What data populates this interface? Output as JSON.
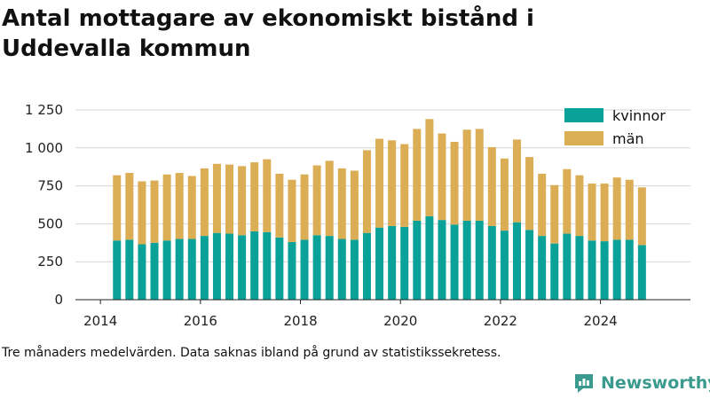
{
  "title": "Antal mottagare av ekonomiskt bistånd i Uddevalla kommun",
  "caption": "Tre månaders medelvärden. Data saknas ibland på grund av statistikssekretess.",
  "brand": "Newsworthy",
  "colors": {
    "kvinnor": "#0aa298",
    "man": "#dbae56",
    "grid": "#d6d6d6",
    "brand": "#3a9a8e"
  },
  "chart_data": {
    "type": "bar",
    "stacked": true,
    "x_axis": {
      "min": 2013.5,
      "max": 2025.8,
      "ticks": [
        2014,
        2016,
        2018,
        2020,
        2022,
        2024
      ]
    },
    "y_axis": {
      "min": 0,
      "max": 1250,
      "ticks": [
        0,
        250,
        500,
        750,
        1000,
        1250
      ],
      "tick_labels": [
        "0",
        "250",
        "500",
        "750",
        "1 000",
        "1 250"
      ]
    },
    "grid": "horizontal",
    "legend_position": "top-right",
    "x": [
      2014.33,
      2014.58,
      2014.83,
      2015.08,
      2015.33,
      2015.58,
      2015.83,
      2016.08,
      2016.33,
      2016.58,
      2016.83,
      2017.08,
      2017.33,
      2017.58,
      2017.83,
      2018.08,
      2018.33,
      2018.58,
      2018.83,
      2019.08,
      2019.33,
      2019.58,
      2019.83,
      2020.08,
      2020.33,
      2020.58,
      2020.83,
      2021.08,
      2021.33,
      2021.58,
      2021.83,
      2022.08,
      2022.33,
      2022.58,
      2022.83,
      2023.08,
      2023.33,
      2023.58,
      2023.83,
      2024.08,
      2024.33,
      2024.58,
      2024.83
    ],
    "series": [
      {
        "name": "kvinnor",
        "values": [
          390,
          395,
          365,
          375,
          390,
          400,
          400,
          420,
          440,
          435,
          425,
          450,
          445,
          410,
          380,
          395,
          425,
          420,
          400,
          395,
          440,
          475,
          485,
          480,
          520,
          550,
          525,
          495,
          520,
          520,
          485,
          455,
          510,
          460,
          420,
          370,
          435,
          420,
          390,
          385,
          395,
          395,
          360
        ]
      },
      {
        "name": "män",
        "values": [
          430,
          440,
          415,
          410,
          435,
          435,
          415,
          445,
          455,
          455,
          455,
          455,
          480,
          420,
          410,
          430,
          460,
          495,
          465,
          455,
          545,
          585,
          565,
          545,
          605,
          640,
          570,
          545,
          600,
          605,
          520,
          475,
          545,
          480,
          410,
          385,
          425,
          400,
          375,
          380,
          410,
          395,
          380
        ]
      }
    ]
  }
}
